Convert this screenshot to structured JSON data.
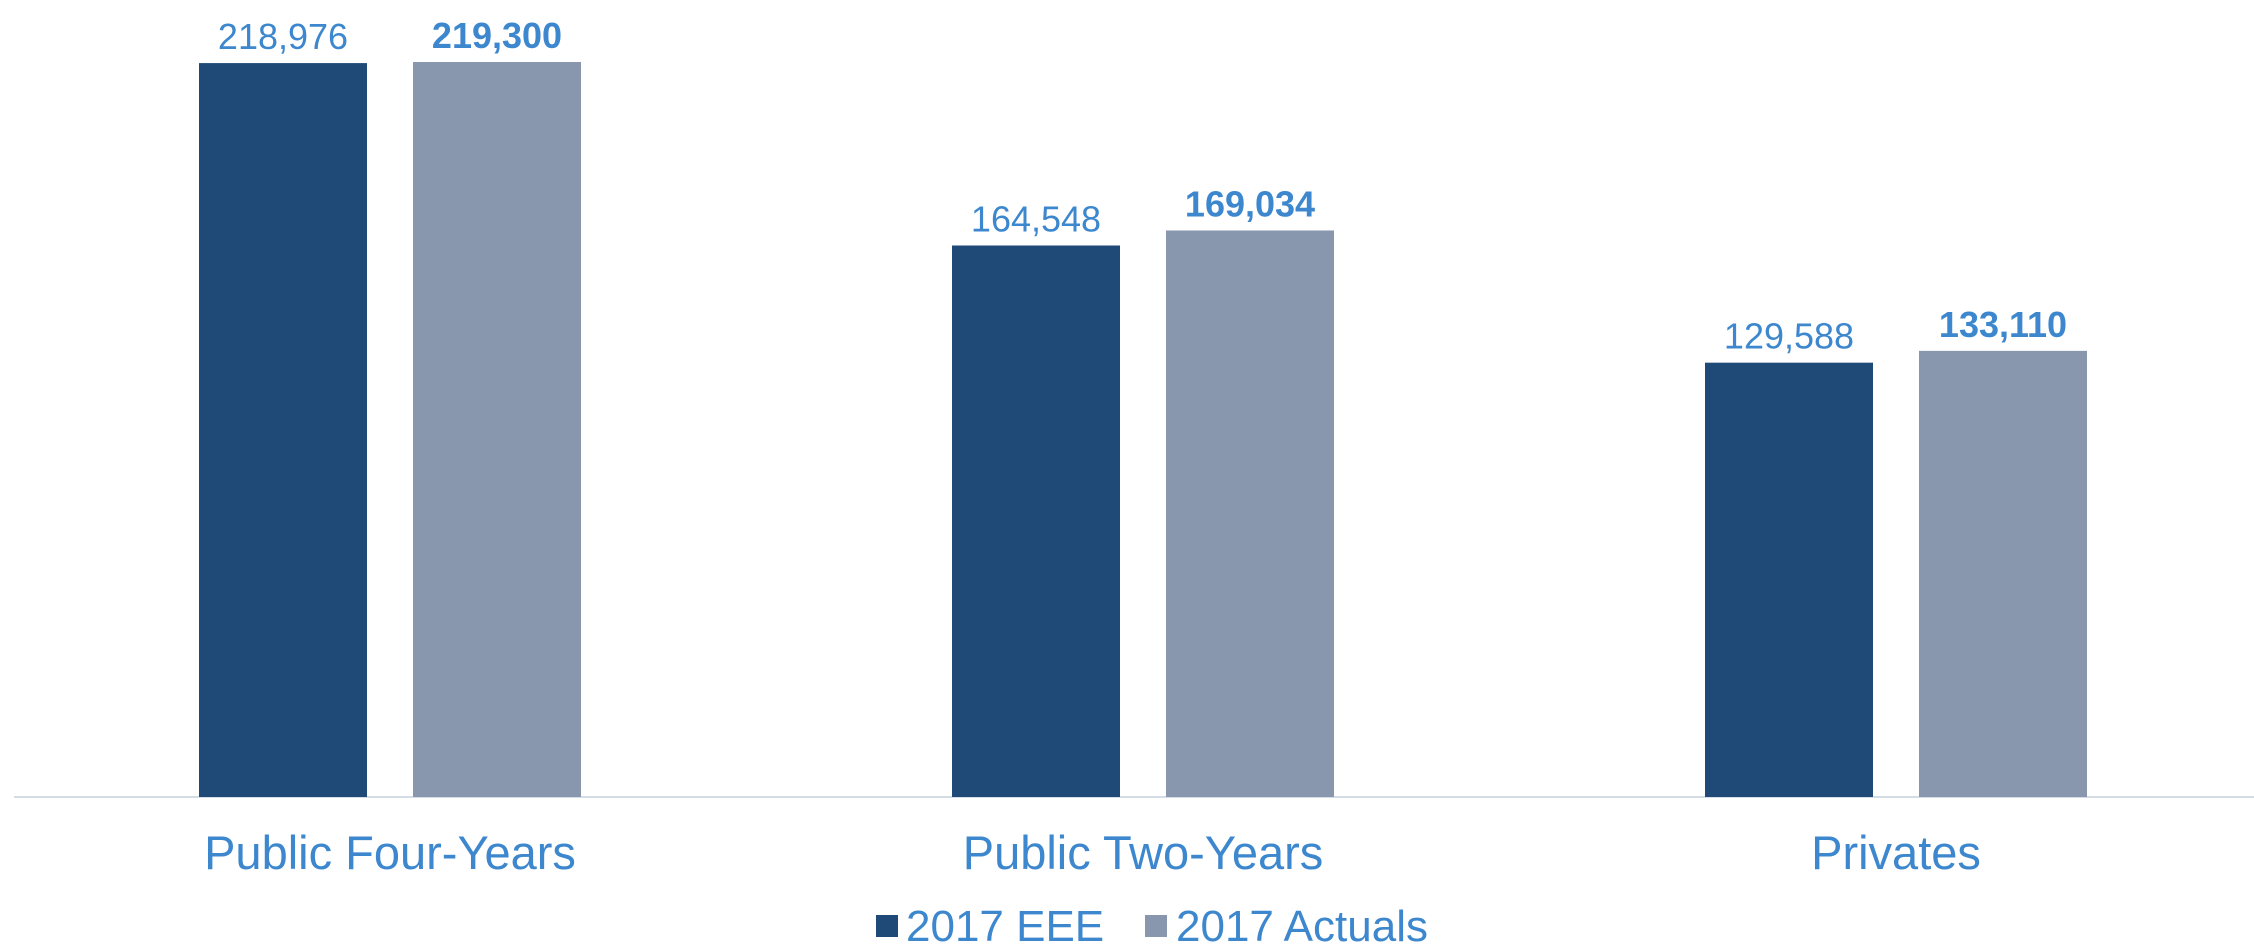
{
  "colors": {
    "series_eee": "#1f4a78",
    "series_actuals": "#8896ae",
    "label_text": "#3c87cd",
    "axis_line": "#d4dde6"
  },
  "chart_data": {
    "type": "bar",
    "title": "",
    "xlabel": "",
    "ylabel": "",
    "categories": [
      "Public Four-Years",
      "Public Two-Years",
      "Privates"
    ],
    "ylim": [
      0,
      219300
    ],
    "grid": false,
    "legend_position": "bottom",
    "series": [
      {
        "name": "2017 EEE",
        "values": [
          218976,
          164548,
          129588
        ],
        "labels": [
          "218,976",
          "164,548",
          "129,588"
        ],
        "label_weight": "normal"
      },
      {
        "name": "2017 Actuals",
        "values": [
          219300,
          169034,
          133110
        ],
        "labels": [
          "219,300",
          "169,034",
          "133,110"
        ],
        "label_weight": "bold"
      }
    ]
  }
}
